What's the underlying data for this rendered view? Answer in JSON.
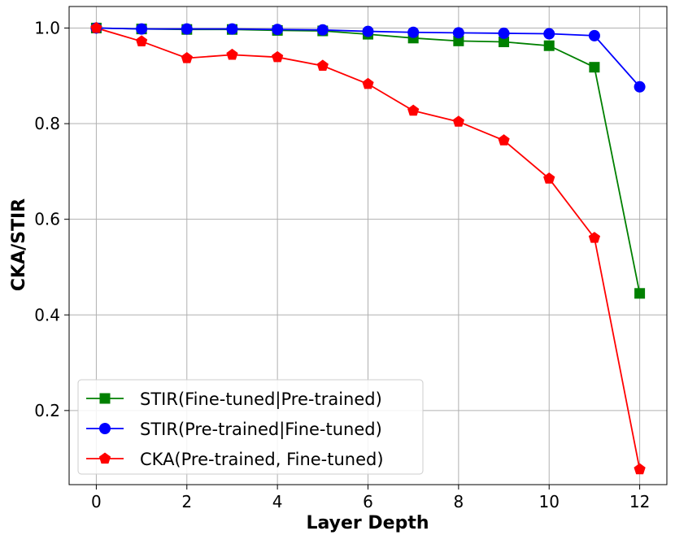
{
  "chart_data": {
    "type": "line",
    "title": "",
    "xlabel": "Layer Depth",
    "ylabel": "CKA/STIR",
    "xlim": [
      -0.6,
      12.6
    ],
    "ylim": [
      0.045,
      1.045
    ],
    "xticks": [
      0,
      2,
      4,
      6,
      8,
      10,
      12
    ],
    "yticks": [
      0.2,
      0.4,
      0.6,
      0.8,
      1.0
    ],
    "xtick_labels": [
      "0",
      "2",
      "4",
      "6",
      "8",
      "10",
      "12"
    ],
    "ytick_labels": [
      "0.2",
      "0.4",
      "0.6",
      "0.8",
      "1.0"
    ],
    "grid": true,
    "legend_position": "lower-left",
    "x": [
      0,
      1,
      2,
      3,
      4,
      5,
      6,
      7,
      8,
      9,
      10,
      11,
      12
    ],
    "series": [
      {
        "name": "STIR(Fine-tuned|Pre-trained)",
        "color": "#008000",
        "marker": "square",
        "values": [
          1.0,
          0.998,
          0.997,
          0.997,
          0.995,
          0.994,
          0.987,
          0.979,
          0.973,
          0.971,
          0.963,
          0.918,
          0.445
        ]
      },
      {
        "name": "STIR(Pre-trained|Fine-tuned)",
        "color": "#0000ff",
        "marker": "circle",
        "values": [
          1.0,
          0.998,
          0.998,
          0.998,
          0.997,
          0.996,
          0.993,
          0.991,
          0.99,
          0.989,
          0.988,
          0.984,
          0.877
        ]
      },
      {
        "name": "CKA(Pre-trained, Fine-tuned)",
        "color": "#ff0000",
        "marker": "pentagon",
        "values": [
          1.0,
          0.972,
          0.937,
          0.944,
          0.939,
          0.921,
          0.883,
          0.827,
          0.804,
          0.765,
          0.685,
          0.561,
          0.077
        ]
      }
    ]
  }
}
